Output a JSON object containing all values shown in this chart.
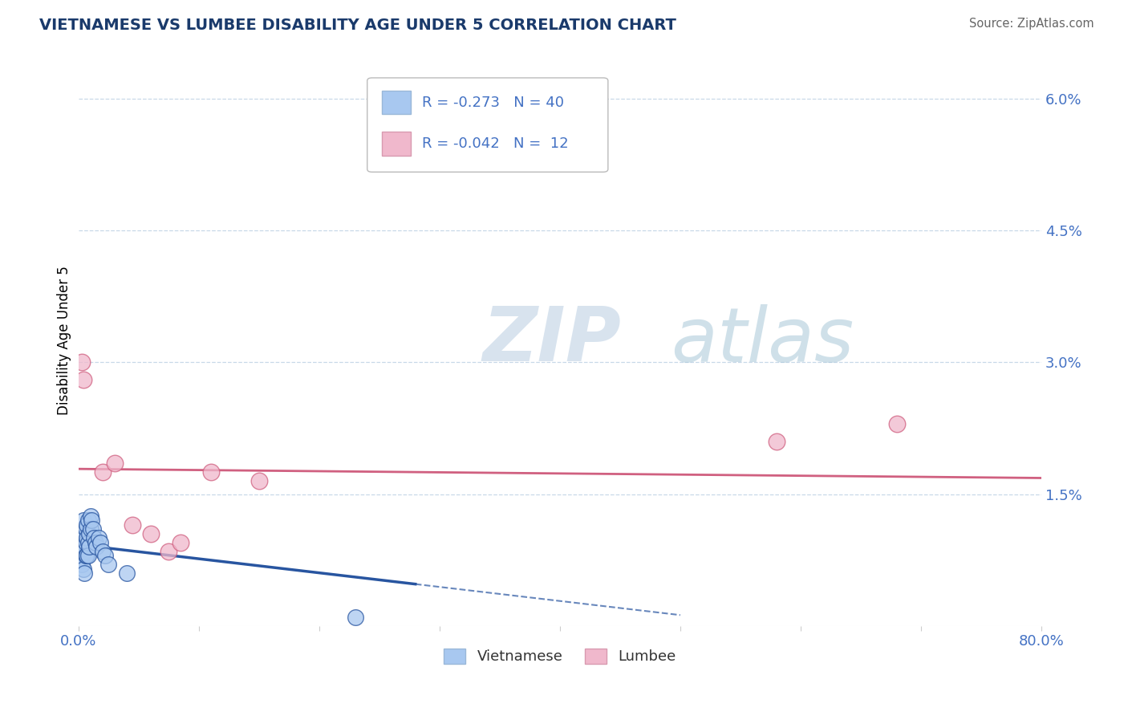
{
  "title": "VIETNAMESE VS LUMBEE DISABILITY AGE UNDER 5 CORRELATION CHART",
  "source": "Source: ZipAtlas.com",
  "ylabel": "Disability Age Under 5",
  "background_color": "#ffffff",
  "title_color": "#1a3a6b",
  "source_color": "#666666",
  "axis_tick_color": "#4472c4",
  "grid_color": "#c8d8e8",
  "legend_r_vietnamese": "-0.273",
  "legend_n_vietnamese": "40",
  "legend_r_lumbee": "-0.042",
  "legend_n_lumbee": "12",
  "vietnamese_color": "#a8c8f0",
  "lumbee_color": "#f0b8cc",
  "trend_vietnamese_color": "#2855a0",
  "trend_lumbee_color": "#d06080",
  "xlim": [
    0.0,
    0.8
  ],
  "ylim": [
    0.0,
    0.065
  ],
  "ytick_pos": [
    0.015,
    0.03,
    0.045,
    0.06
  ],
  "ytick_labels": [
    "1.5%",
    "3.0%",
    "4.5%",
    "6.0%"
  ],
  "vietnamese_x": [
    0.002,
    0.002,
    0.002,
    0.003,
    0.003,
    0.003,
    0.003,
    0.004,
    0.004,
    0.004,
    0.004,
    0.005,
    0.005,
    0.005,
    0.005,
    0.006,
    0.006,
    0.006,
    0.007,
    0.007,
    0.007,
    0.008,
    0.008,
    0.008,
    0.009,
    0.009,
    0.01,
    0.01,
    0.011,
    0.012,
    0.013,
    0.014,
    0.015,
    0.017,
    0.018,
    0.02,
    0.022,
    0.025,
    0.04,
    0.23
  ],
  "vietnamese_y": [
    0.009,
    0.008,
    0.0075,
    0.01,
    0.0085,
    0.008,
    0.007,
    0.012,
    0.0095,
    0.0085,
    0.0065,
    0.01,
    0.009,
    0.0085,
    0.006,
    0.011,
    0.0095,
    0.008,
    0.0115,
    0.01,
    0.008,
    0.012,
    0.0095,
    0.008,
    0.0105,
    0.009,
    0.0125,
    0.011,
    0.012,
    0.011,
    0.01,
    0.0095,
    0.009,
    0.01,
    0.0095,
    0.0085,
    0.008,
    0.007,
    0.006,
    0.001
  ],
  "lumbee_x": [
    0.003,
    0.004,
    0.02,
    0.03,
    0.045,
    0.06,
    0.075,
    0.085,
    0.11,
    0.15,
    0.58,
    0.68
  ],
  "lumbee_y": [
    0.03,
    0.028,
    0.0175,
    0.0185,
    0.0115,
    0.0105,
    0.0085,
    0.0095,
    0.0175,
    0.0165,
    0.021,
    0.023
  ]
}
